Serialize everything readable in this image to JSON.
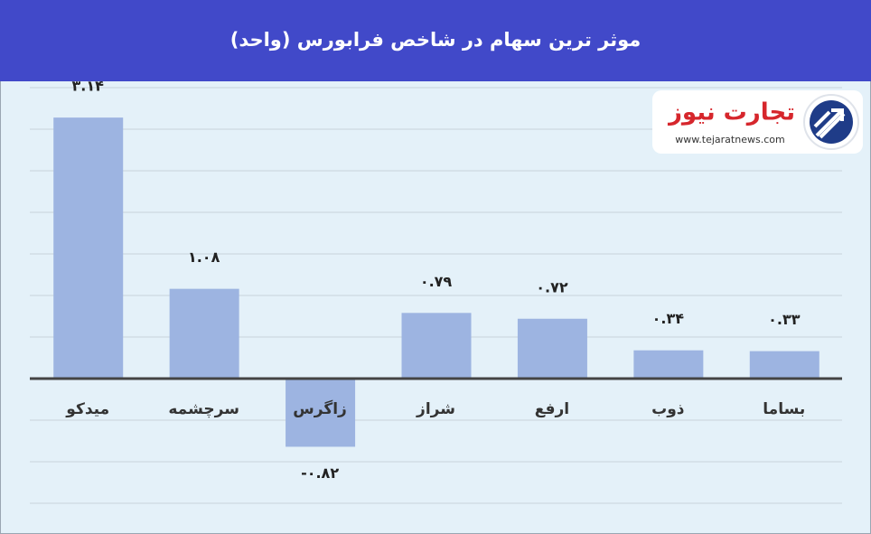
{
  "chart_data": {
    "type": "bar",
    "title": "موثر ترین سهام در شاخص فرابورس (واحد)",
    "categories": [
      "میدکو",
      "سرچشمه",
      "زاگرس",
      "شراز",
      "ارفع",
      "ذوب",
      "بساما"
    ],
    "values": [
      3.14,
      1.08,
      -0.82,
      0.79,
      0.72,
      0.34,
      0.33
    ],
    "value_labels": [
      "۳.۱۴",
      "۱.۰۸",
      "-۰.۸۲",
      "۰.۷۹",
      "۰.۷۲",
      "۰.۳۴",
      "۰.۳۳"
    ],
    "color": "#9db4e1",
    "ylim": [
      -1.5,
      3.5
    ],
    "yticks": [
      -1.5,
      -1,
      -0.5,
      0,
      0.5,
      1,
      1.5,
      2,
      2.5,
      3,
      3.5
    ],
    "grid": true,
    "logo_text": "تجارت نیوز",
    "logo_url": "www.tejaratnews.com"
  }
}
